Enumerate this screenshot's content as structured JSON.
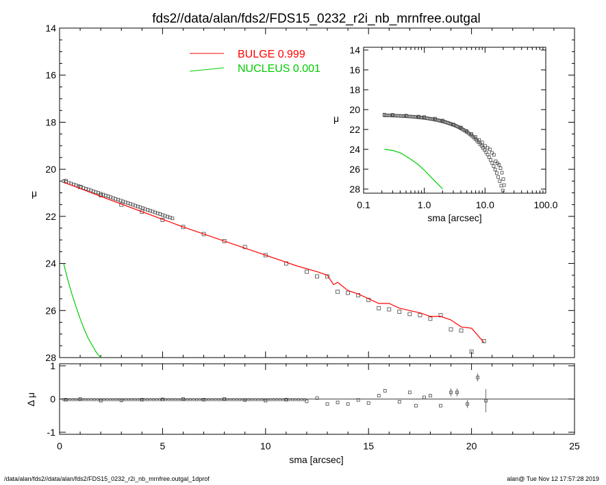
{
  "chart_data": [
    {
      "type": "scatter",
      "title": "fds2//data/alan/fds2/FDS15_0232_r2i_nb_mrnfree.outgal",
      "xlabel": "",
      "ylabel": "μ",
      "xlim": [
        0,
        25
      ],
      "ylim": [
        28,
        14
      ],
      "x_ticks": [
        0,
        5,
        10,
        15,
        20,
        25
      ],
      "y_ticks": [
        14,
        16,
        18,
        20,
        22,
        24,
        26,
        28
      ],
      "x_tick_labels_shown": false,
      "legend": {
        "placement": "top-center",
        "entries": [
          {
            "label": "BULGE",
            "value": "0.999",
            "color": "#ff0000"
          },
          {
            "label": "NUCLEUS",
            "value": "0.001",
            "color": "#00cc00"
          }
        ]
      },
      "series": [
        {
          "kind": "points",
          "marker": "square",
          "x": [
            0.3,
            1.0,
            2.0,
            3.0,
            4.0,
            5.0,
            6.0,
            7.0,
            8.0,
            9.0,
            10.0,
            11.0,
            12.0,
            12.5,
            13.0,
            13.5,
            14.0,
            14.5,
            15.0,
            15.5,
            16.0,
            16.5,
            17.0,
            17.5,
            18.0,
            18.5,
            19.0,
            19.5,
            20.0,
            20.6
          ],
          "y": [
            20.5,
            20.75,
            21.1,
            21.5,
            21.8,
            22.15,
            22.45,
            22.75,
            23.05,
            23.3,
            23.65,
            24.0,
            24.35,
            24.55,
            24.55,
            25.2,
            25.25,
            25.35,
            25.55,
            25.9,
            25.95,
            26.05,
            26.15,
            26.2,
            26.35,
            26.2,
            26.8,
            26.85,
            27.75,
            27.3
          ]
        },
        {
          "name": "BULGE",
          "kind": "line",
          "color": "#ff0000",
          "x": [
            0.2,
            2.0,
            4.0,
            6.0,
            8.0,
            10.0,
            11.5,
            12.5,
            13.0,
            13.3,
            13.5,
            14.0,
            14.5,
            15.0,
            15.5,
            16.0,
            16.5,
            17.0,
            17.5,
            18.0,
            18.5,
            19.0,
            19.5,
            20.0,
            20.6
          ],
          "y": [
            20.55,
            21.15,
            21.8,
            22.45,
            23.05,
            23.65,
            24.1,
            24.35,
            24.5,
            24.9,
            24.8,
            25.15,
            25.3,
            25.5,
            25.7,
            25.7,
            25.9,
            26.0,
            26.1,
            26.25,
            26.25,
            26.4,
            26.7,
            26.75,
            27.35
          ]
        },
        {
          "name": "NUCLEUS",
          "kind": "line",
          "color": "#00cc00",
          "x": [
            0.2,
            0.4,
            0.6,
            0.8,
            1.0,
            1.2,
            1.4,
            1.6,
            1.8,
            2.0
          ],
          "y": [
            24.0,
            24.7,
            25.3,
            25.85,
            26.35,
            26.8,
            27.2,
            27.5,
            27.8,
            28.0
          ]
        }
      ]
    },
    {
      "type": "scatter",
      "xlabel": "sma [arcsec]",
      "ylabel": "Δ μ",
      "xlim": [
        0,
        25
      ],
      "ylim": [
        -1,
        1
      ],
      "x_ticks": [
        0,
        5,
        10,
        15,
        20,
        25
      ],
      "y_ticks": [
        1,
        0,
        -1
      ],
      "reference_line": 0,
      "series": [
        {
          "kind": "points",
          "marker": "square",
          "x": [
            0.3,
            1.0,
            2.0,
            3.0,
            4.0,
            5.0,
            6.0,
            7.0,
            8.0,
            9.0,
            10.0,
            11.0,
            12.0,
            12.5,
            13.0,
            13.5,
            14.0,
            14.5,
            15.0,
            15.5,
            15.8,
            16.5,
            17.0,
            17.3,
            17.7,
            18.0,
            18.5,
            19.0,
            19.3,
            19.8,
            20.3,
            20.7
          ],
          "y": [
            -0.02,
            0.0,
            -0.05,
            -0.04,
            -0.02,
            -0.01,
            0.0,
            -0.02,
            0.0,
            -0.03,
            -0.05,
            -0.02,
            -0.07,
            0.03,
            -0.15,
            -0.1,
            -0.15,
            -0.03,
            -0.12,
            0.1,
            0.25,
            -0.08,
            0.2,
            -0.2,
            0.05,
            0.1,
            -0.2,
            0.2,
            0.2,
            -0.15,
            0.65,
            -0.05
          ]
        }
      ]
    },
    {
      "type": "scatter",
      "xlabel": "sma [arcsec]",
      "ylabel": "μ",
      "x_scale": "log",
      "xlim": [
        0.1,
        100.0
      ],
      "ylim": [
        28,
        14
      ],
      "x_ticks": [
        "0.1",
        "1.0",
        "10.0",
        "100.0"
      ],
      "y_ticks": [
        14,
        16,
        18,
        20,
        22,
        24,
        26,
        28
      ],
      "series": [
        {
          "kind": "points",
          "marker": "square",
          "x": [
            0.22,
            0.3,
            0.5,
            0.8,
            1.0,
            1.5,
            2.0,
            3.0,
            4.0,
            5.0,
            6.0,
            7.0,
            8.0,
            9.0,
            10.0,
            11.0,
            12.0,
            13.0,
            14.0,
            15.0,
            16.0,
            17.0,
            18.0,
            19.0,
            20.0,
            20.6
          ],
          "y": [
            20.5,
            20.52,
            20.6,
            20.7,
            20.75,
            20.9,
            21.1,
            21.5,
            21.8,
            22.15,
            22.45,
            22.75,
            23.05,
            23.3,
            23.65,
            23.85,
            24.0,
            24.35,
            24.55,
            25.2,
            25.4,
            25.55,
            25.9,
            26.35,
            27.0,
            27.6
          ]
        },
        {
          "name": "NUCLEUS",
          "kind": "line",
          "color": "#00cc00",
          "x": [
            0.22,
            0.3,
            0.4,
            0.5,
            0.6,
            0.8,
            1.0,
            1.2,
            1.5,
            1.8,
            2.0
          ],
          "y": [
            24.0,
            24.1,
            24.35,
            24.7,
            25.0,
            25.55,
            26.1,
            26.6,
            27.2,
            27.7,
            28.0
          ]
        }
      ]
    }
  ],
  "footer": {
    "left": "/data/alan/fds2//data/alan/fds2/FDS15_0232_r2i_nb_mrnfree.outgal_1dprof",
    "right": "alan@  Tue Nov 12 17:57:28 2019"
  }
}
